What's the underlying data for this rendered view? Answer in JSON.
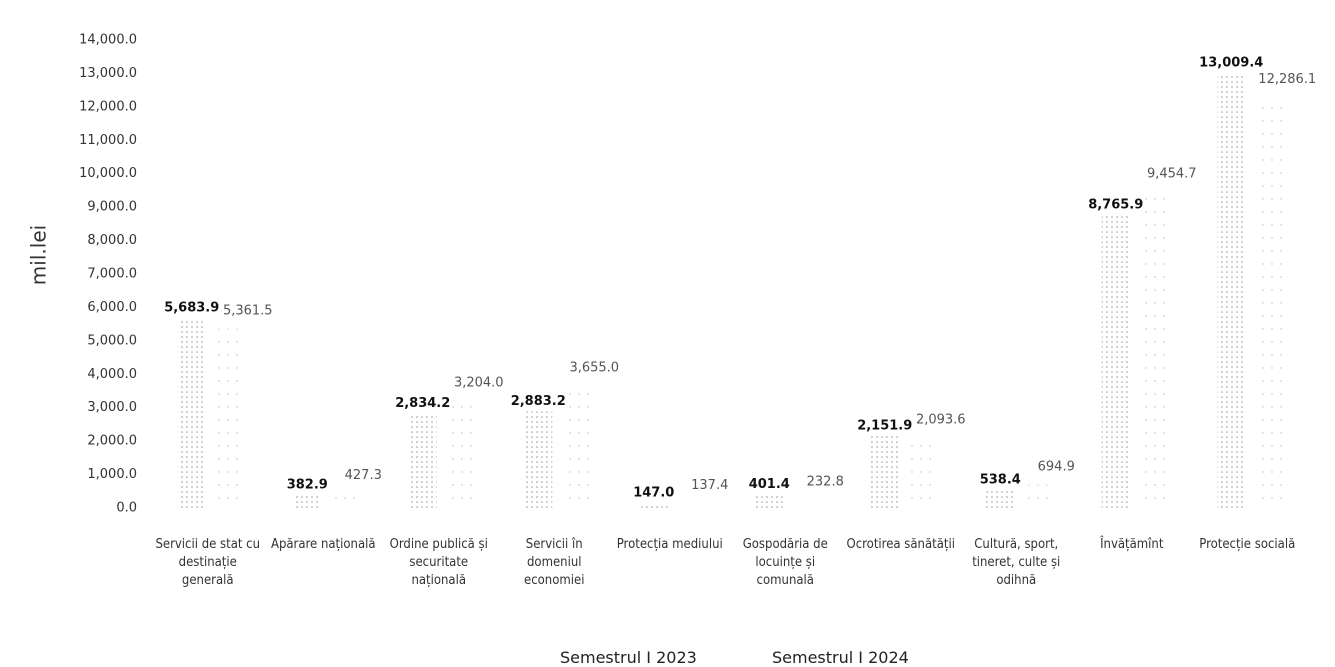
{
  "chart_data": {
    "type": "bar",
    "y_label": "mil.lei",
    "categories": [
      "Servicii de stat cu destinație generală",
      "Apărare națională",
      "Ordine publică și securitate națională",
      "Servicii în domeniul economiei",
      "Protecția mediului",
      "Gospodăria de locuințe și comunală",
      "Ocrotirea sănătății",
      "Cultură, sport, tineret, culte și odihnă",
      "Învățămînt",
      "Protecție socială"
    ],
    "series": [
      {
        "name": "Semestrul I 2023",
        "color": "#999999",
        "values": [
          5683.9,
          382.9,
          2834.2,
          2883.2,
          147.0,
          401.4,
          2151.9,
          538.4,
          8765.9,
          13009.4
        ],
        "value_labels": [
          "5,683.9",
          "382.9",
          "2,834.2",
          "2,883.2",
          "147.0",
          "401.4",
          "2,151.9",
          "538.4",
          "8,765.9",
          "13,009.4"
        ]
      },
      {
        "name": "Semestrul I 2024",
        "color": "#d0d0d0",
        "values": [
          5361.5,
          427.3,
          3204.0,
          3655.0,
          137.4,
          232.8,
          2093.6,
          694.9,
          9454.7,
          12286.1
        ],
        "value_labels": [
          "5,361.5",
          "427.3",
          "3,204.0",
          "3,655.0",
          "137.4",
          "232.8",
          "2,093.6",
          "694.9",
          "9,454.7",
          "12,286.1"
        ]
      }
    ],
    "ylim": [
      0,
      14000
    ],
    "yticks": [
      {
        "value": 0,
        "label": "0.0"
      },
      {
        "value": 1000,
        "label": "1,000.0"
      },
      {
        "value": 2000,
        "label": "2,000.0"
      },
      {
        "value": 3000,
        "label": "3,000.0"
      },
      {
        "value": 4000,
        "label": "4,000.0"
      },
      {
        "value": 5000,
        "label": "5,000.0"
      },
      {
        "value": 6000,
        "label": "6,000.0"
      },
      {
        "value": 7000,
        "label": "7,000.0"
      },
      {
        "value": 8000,
        "label": "8,000.0"
      },
      {
        "value": 9000,
        "label": "9,000.0"
      },
      {
        "value": 10000,
        "label": "10,000.0"
      },
      {
        "value": 11000,
        "label": "11,000.0"
      },
      {
        "value": 12000,
        "label": "12,000.0"
      },
      {
        "value": 13000,
        "label": "13,000.0"
      },
      {
        "value": 14000,
        "label": "14,000.0"
      }
    ],
    "grid": false
  }
}
